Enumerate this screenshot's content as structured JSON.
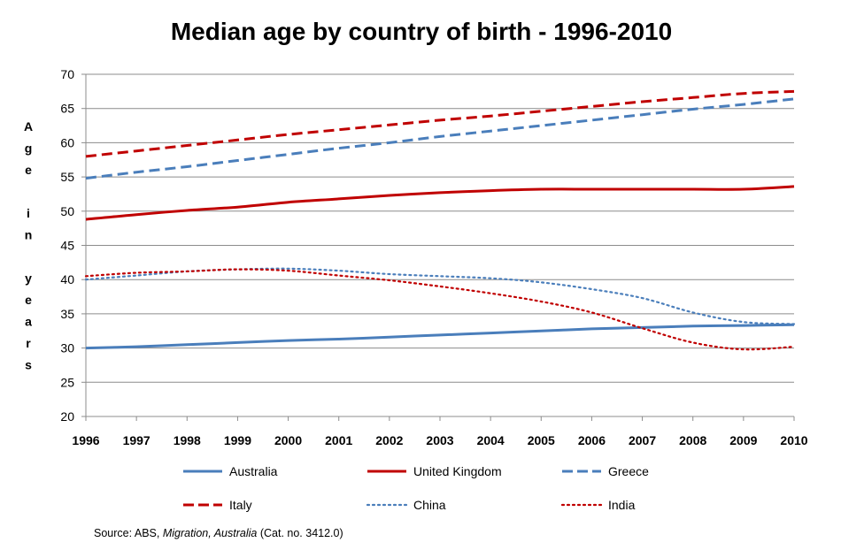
{
  "chart_data": {
    "type": "line",
    "title": "Median age by country of birth - 1996-2010",
    "ylabel": "Age in years",
    "xlabel": "",
    "x": [
      1996,
      1997,
      1998,
      1999,
      2000,
      2001,
      2002,
      2003,
      2004,
      2005,
      2006,
      2007,
      2008,
      2009,
      2010
    ],
    "xlim": [
      1996,
      2010
    ],
    "ylim": [
      20,
      70
    ],
    "yticks": [
      20,
      25,
      30,
      35,
      40,
      45,
      50,
      55,
      60,
      65,
      70
    ],
    "grid": true,
    "legend_position": "bottom",
    "series": [
      {
        "name": "Australia",
        "color": "#4a7ebb",
        "style": "solid",
        "values": [
          30.0,
          30.2,
          30.5,
          30.8,
          31.1,
          31.3,
          31.6,
          31.9,
          32.2,
          32.5,
          32.8,
          33.0,
          33.2,
          33.3,
          33.4
        ]
      },
      {
        "name": "United Kingdom",
        "color": "#c00000",
        "style": "solid",
        "values": [
          48.8,
          49.5,
          50.1,
          50.6,
          51.3,
          51.8,
          52.3,
          52.7,
          53.0,
          53.2,
          53.2,
          53.2,
          53.2,
          53.2,
          53.6
        ]
      },
      {
        "name": "Greece",
        "color": "#4a7ebb",
        "style": "dashed",
        "values": [
          54.8,
          55.7,
          56.5,
          57.4,
          58.3,
          59.2,
          60.0,
          60.9,
          61.7,
          62.5,
          63.3,
          64.1,
          64.9,
          65.6,
          66.4
        ]
      },
      {
        "name": "Italy",
        "color": "#c00000",
        "style": "dashed",
        "values": [
          58.0,
          58.8,
          59.6,
          60.4,
          61.2,
          61.9,
          62.6,
          63.3,
          63.9,
          64.6,
          65.3,
          66.0,
          66.6,
          67.2,
          67.5
        ]
      },
      {
        "name": "China",
        "color": "#4a7ebb",
        "style": "dotted",
        "values": [
          40.0,
          40.6,
          41.2,
          41.5,
          41.6,
          41.3,
          40.8,
          40.5,
          40.2,
          39.6,
          38.6,
          37.3,
          35.2,
          33.8,
          33.5
        ]
      },
      {
        "name": "India",
        "color": "#c00000",
        "style": "dotted",
        "values": [
          40.5,
          41.0,
          41.2,
          41.5,
          41.3,
          40.6,
          39.9,
          39.0,
          38.0,
          36.8,
          35.2,
          32.9,
          30.8,
          29.8,
          30.2
        ]
      }
    ]
  },
  "source": {
    "prefix": "Source:  ABS, ",
    "italic": "Migration, Australia",
    "suffix": " (Cat. no. 3412.0)"
  }
}
